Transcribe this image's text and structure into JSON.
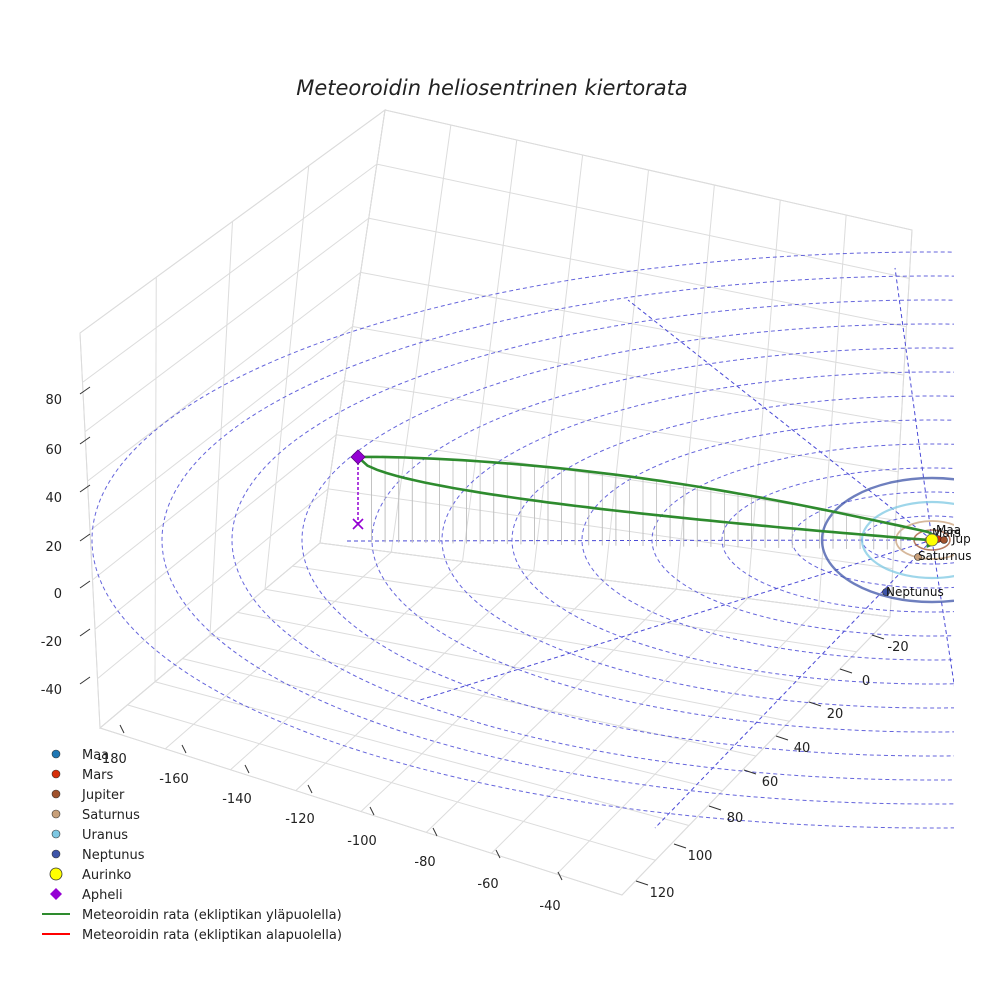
{
  "chart_data": {
    "type": "scatter3d",
    "title": "Meteoroidin heliosentrinen kiertorata",
    "axes": {
      "x": {
        "ticks": [
          -180,
          -160,
          -140,
          -120,
          -100,
          -80,
          -60,
          -40
        ]
      },
      "y": {
        "ticks": [
          -20,
          0,
          20,
          40,
          60,
          80,
          100,
          120
        ]
      },
      "z": {
        "ticks": [
          -40,
          -20,
          0,
          20,
          40,
          60,
          80
        ]
      }
    },
    "grid": true,
    "legend_position": "bottom-left",
    "colors": {
      "maa": "#1f77b4",
      "mars": "#d62f0a",
      "jupiter": "#a0522d",
      "saturnus": "#c8a07a",
      "uranus": "#7ec8e3",
      "neptunus": "#3d54a8",
      "aurinko": "#ffff00",
      "apheli": "#9400d3",
      "rata_ylapuolella": "#2e8b2e",
      "rata_alapuolella": "#ff0000",
      "ecliptic_grid": "#4a4ad6"
    },
    "planets": [
      {
        "name": "Maa",
        "label": "Maa"
      },
      {
        "name": "Mars",
        "label": "Mars"
      },
      {
        "name": "Jupiter",
        "label": "Jup"
      },
      {
        "name": "Saturnus",
        "label": "Saturnus"
      },
      {
        "name": "Neptunus",
        "label": "Neptunus"
      }
    ],
    "legend": [
      {
        "label": "Maa",
        "marker": "dot",
        "color_key": "maa"
      },
      {
        "label": "Mars",
        "marker": "dot",
        "color_key": "mars"
      },
      {
        "label": "Jupiter",
        "marker": "dot",
        "color_key": "jupiter"
      },
      {
        "label": "Saturnus",
        "marker": "dot",
        "color_key": "saturnus"
      },
      {
        "label": "Uranus",
        "marker": "dot",
        "color_key": "uranus"
      },
      {
        "label": "Neptunus",
        "marker": "dot",
        "color_key": "neptunus"
      },
      {
        "label": "Aurinko",
        "marker": "big-dot",
        "color_key": "aurinko"
      },
      {
        "label": "Apheli",
        "marker": "diamond",
        "color_key": "apheli"
      },
      {
        "label": "Meteoroidin rata (ekliptikan yläpuolella)",
        "marker": "line",
        "color_key": "rata_ylapuolella"
      },
      {
        "label": "Meteoroidin rata (ekliptikan alapuolella)",
        "marker": "line",
        "color_key": "rata_alapuolella"
      }
    ]
  }
}
